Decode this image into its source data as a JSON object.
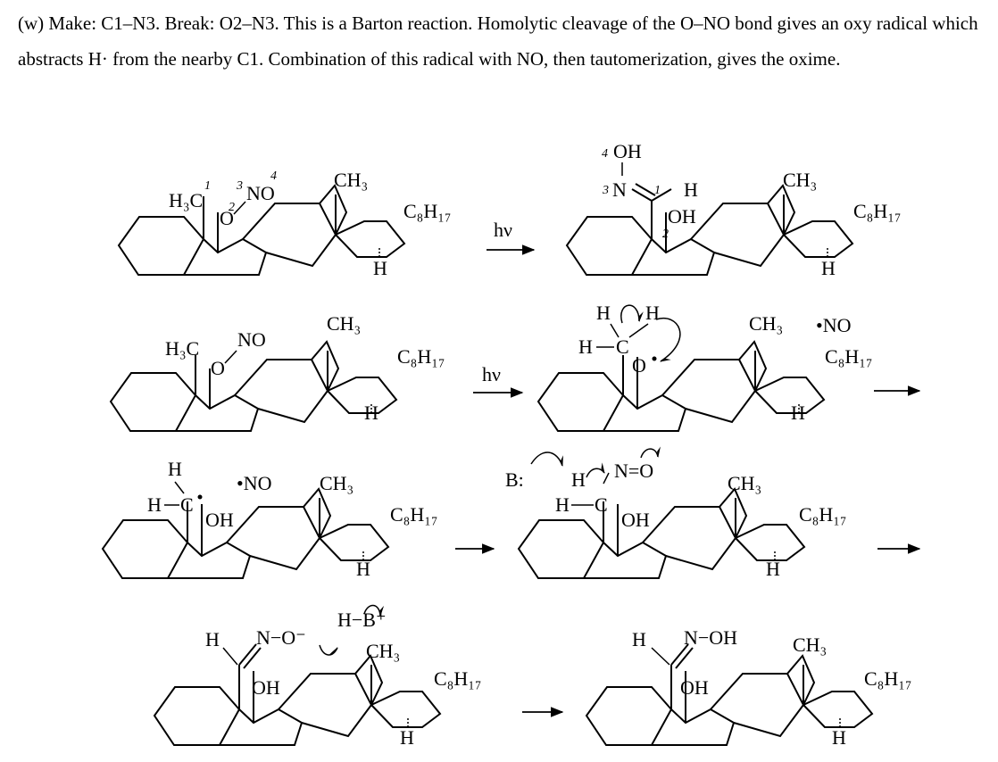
{
  "problem": {
    "text": "(w) Make: C1–N3. Break: O2–N3. This is a Barton reaction. Homolytic cleavage of the O–NO bond gives an oxy radical which abstracts H· from the nearby C1. Combination of this radical with NO, then tautomerization, gives the oxime."
  },
  "labels": {
    "h3c": "H₃C",
    "no": "NO",
    "dot_no": "•NO",
    "o": "O",
    "ch3": "CH₃",
    "c8h17": "C₈H₁₇",
    "h": "H",
    "hv": "hν",
    "oh": "OH",
    "n": "N",
    "c": "C",
    "b": "B:",
    "hb_plus": "H−B⁺",
    "n_o_minus": "N−O⁻",
    "n_oh": "N−OH",
    "n_eq_o": "N=O",
    "num1": "1",
    "num2": "2",
    "num3": "3",
    "num4": "4"
  }
}
